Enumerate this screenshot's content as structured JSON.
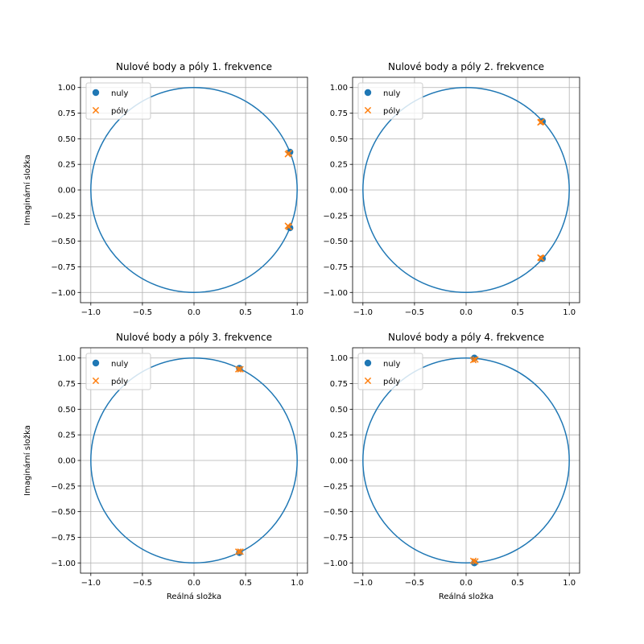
{
  "colors": {
    "zeros": "#1f77b4",
    "poles": "#ff7f0e",
    "unit_circle": "#1f77b4"
  },
  "chart_data": [
    {
      "type": "scatter",
      "title": "Nulové body a póly 1. frekvence",
      "xlabel": "",
      "ylabel": "Imaginární složka",
      "xlim": [
        -1.1,
        1.1
      ],
      "ylim": [
        -1.1,
        1.1
      ],
      "xticks": [
        -1.0,
        -0.5,
        0.0,
        0.5,
        1.0
      ],
      "xtick_labels": [
        "−1.0",
        "−0.5",
        "0.0",
        "0.5",
        "1.0"
      ],
      "yticks": [
        1.0,
        0.75,
        0.5,
        0.25,
        0.0,
        -0.25,
        -0.5,
        -0.75,
        -1.0
      ],
      "ytick_labels": [
        "1.00",
        "0.75",
        "0.50",
        "0.25",
        "0.00",
        "−0.25",
        "−0.50",
        "−0.75",
        "−1.00"
      ],
      "grid": true,
      "legend_position": "top-left",
      "unit_circle": true,
      "series": [
        {
          "name": "nuly",
          "marker": "circle",
          "points": [
            [
              0.93,
              0.37
            ],
            [
              0.93,
              -0.37
            ]
          ]
        },
        {
          "name": "póly",
          "marker": "x",
          "points": [
            [
              0.91,
              0.35
            ],
            [
              0.92,
              0.36
            ],
            [
              0.91,
              -0.35
            ],
            [
              0.92,
              -0.36
            ]
          ]
        }
      ]
    },
    {
      "type": "scatter",
      "title": "Nulové body a póly 2. frekvence",
      "xlabel": "",
      "ylabel": "",
      "xlim": [
        -1.1,
        1.1
      ],
      "ylim": [
        -1.1,
        1.1
      ],
      "xticks": [
        -1.0,
        -0.5,
        0.0,
        0.5,
        1.0
      ],
      "xtick_labels": [
        "−1.0",
        "−0.5",
        "0.0",
        "0.5",
        "1.0"
      ],
      "yticks": [
        1.0,
        0.75,
        0.5,
        0.25,
        0.0,
        -0.25,
        -0.5,
        -0.75,
        -1.0
      ],
      "ytick_labels": [
        "1.00",
        "0.75",
        "0.50",
        "0.25",
        "0.00",
        "−0.25",
        "−0.50",
        "−0.75",
        "−1.00"
      ],
      "grid": true,
      "legend_position": "top-left",
      "unit_circle": true,
      "series": [
        {
          "name": "nuly",
          "marker": "circle",
          "points": [
            [
              0.74,
              0.67
            ],
            [
              0.74,
              -0.67
            ]
          ]
        },
        {
          "name": "póly",
          "marker": "x",
          "points": [
            [
              0.72,
              0.66
            ],
            [
              0.73,
              0.665
            ],
            [
              0.72,
              -0.66
            ],
            [
              0.73,
              -0.665
            ]
          ]
        }
      ]
    },
    {
      "type": "scatter",
      "title": "Nulové body a póly 3. frekvence",
      "xlabel": "Reálná složka",
      "ylabel": "Imaginární složka",
      "xlim": [
        -1.1,
        1.1
      ],
      "ylim": [
        -1.1,
        1.1
      ],
      "xticks": [
        -1.0,
        -0.5,
        0.0,
        0.5,
        1.0
      ],
      "xtick_labels": [
        "−1.0",
        "−0.5",
        "0.0",
        "0.5",
        "1.0"
      ],
      "yticks": [
        1.0,
        0.75,
        0.5,
        0.25,
        0.0,
        -0.25,
        -0.5,
        -0.75,
        -1.0
      ],
      "ytick_labels": [
        "1.00",
        "0.75",
        "0.50",
        "0.25",
        "0.00",
        "−0.25",
        "−0.50",
        "−0.75",
        "−1.00"
      ],
      "grid": true,
      "legend_position": "top-left",
      "unit_circle": true,
      "series": [
        {
          "name": "nuly",
          "marker": "circle",
          "points": [
            [
              0.44,
              0.9
            ],
            [
              0.44,
              -0.9
            ]
          ]
        },
        {
          "name": "póly",
          "marker": "x",
          "points": [
            [
              0.43,
              0.89
            ],
            [
              0.45,
              0.89
            ],
            [
              0.43,
              -0.89
            ],
            [
              0.45,
              -0.89
            ]
          ]
        }
      ]
    },
    {
      "type": "scatter",
      "title": "Nulové body a póly 4. frekvence",
      "xlabel": "Reálná složka",
      "ylabel": "",
      "xlim": [
        -1.1,
        1.1
      ],
      "ylim": [
        -1.1,
        1.1
      ],
      "xticks": [
        -1.0,
        -0.5,
        0.0,
        0.5,
        1.0
      ],
      "xtick_labels": [
        "−1.0",
        "−0.5",
        "0.0",
        "0.5",
        "1.0"
      ],
      "yticks": [
        1.0,
        0.75,
        0.5,
        0.25,
        0.0,
        -0.25,
        -0.5,
        -0.75,
        -1.0
      ],
      "ytick_labels": [
        "1.00",
        "0.75",
        "0.50",
        "0.25",
        "0.00",
        "−0.25",
        "−0.50",
        "−0.75",
        "−1.00"
      ],
      "grid": true,
      "legend_position": "top-left",
      "unit_circle": true,
      "series": [
        {
          "name": "nuly",
          "marker": "circle",
          "points": [
            [
              0.08,
              1.0
            ],
            [
              0.08,
              -1.0
            ]
          ]
        },
        {
          "name": "póly",
          "marker": "x",
          "points": [
            [
              0.07,
              0.98
            ],
            [
              0.09,
              0.985
            ],
            [
              0.07,
              -0.98
            ],
            [
              0.09,
              -0.985
            ]
          ]
        }
      ]
    }
  ]
}
